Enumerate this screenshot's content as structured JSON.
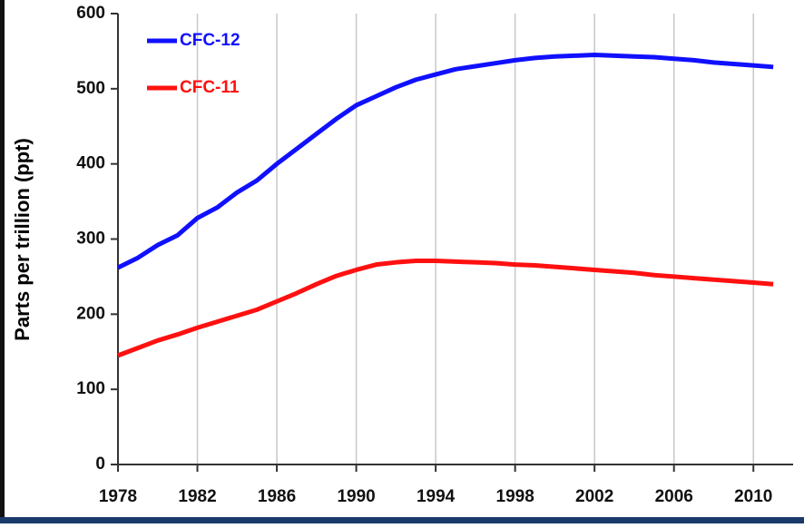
{
  "chart_data": {
    "type": "line",
    "ylabel": "Parts per trillion (ppt)",
    "x": [
      1978,
      1979,
      1980,
      1981,
      1982,
      1983,
      1984,
      1985,
      1986,
      1987,
      1988,
      1989,
      1990,
      1991,
      1992,
      1993,
      1994,
      1995,
      1996,
      1997,
      1998,
      1999,
      2000,
      2001,
      2002,
      2003,
      2004,
      2005,
      2006,
      2007,
      2008,
      2009,
      2010,
      2011
    ],
    "series": [
      {
        "name": "CFC-12",
        "color": "#1010ff",
        "values": [
          262,
          275,
          292,
          305,
          328,
          342,
          362,
          378,
          400,
          420,
          440,
          460,
          478,
          490,
          502,
          512,
          519,
          526,
          530,
          534,
          538,
          541,
          543,
          544,
          545,
          544,
          543,
          542,
          540,
          538,
          535,
          533,
          531,
          529
        ]
      },
      {
        "name": "CFC-11",
        "color": "#ff1010",
        "values": [
          145,
          155,
          165,
          173,
          182,
          190,
          198,
          206,
          217,
          228,
          240,
          251,
          259,
          266,
          269,
          271,
          271,
          270,
          269,
          268,
          266,
          265,
          263,
          261,
          259,
          257,
          255,
          252,
          250,
          248,
          246,
          244,
          242,
          240
        ]
      }
    ],
    "xlim": [
      1978,
      2012
    ],
    "xticks": [
      1978,
      1982,
      1986,
      1990,
      1994,
      1998,
      2002,
      2006,
      2010
    ],
    "ylim": [
      0,
      600
    ],
    "yticks": [
      0,
      100,
      200,
      300,
      400,
      500,
      600
    ],
    "grid": true,
    "legend": "upper left"
  }
}
